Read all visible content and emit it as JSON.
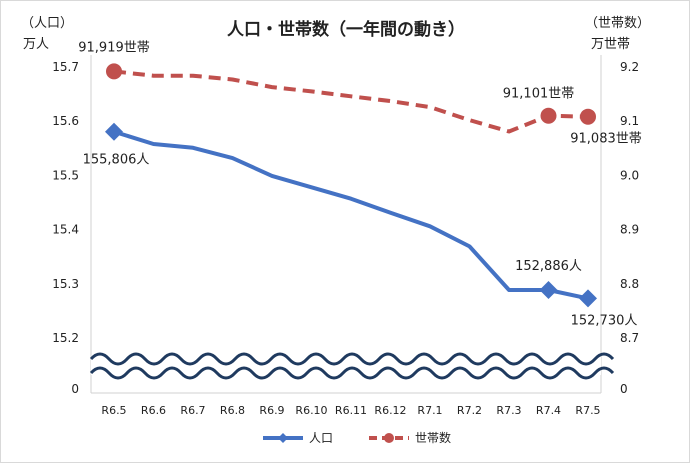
{
  "chart_data": {
    "type": "line",
    "title": "人口・世帯数（一年間の動き）",
    "left_axis": {
      "unit_line1": "（人口）",
      "unit_line2": "万人",
      "ticks": [
        "15.7",
        "15.6",
        "15.5",
        "15.4",
        "15.3",
        "15.2",
        "0"
      ],
      "ylim": [
        15.2,
        15.7
      ],
      "axis_break": true
    },
    "right_axis": {
      "unit_line1": "（世帯数）",
      "unit_line2": "万世帯",
      "ticks": [
        "9.2",
        "9.1",
        "9.0",
        "8.9",
        "8.8",
        "8.7",
        "0"
      ],
      "ylim": [
        8.7,
        9.2
      ],
      "axis_break": true
    },
    "categories": [
      "R6.5",
      "R6.6",
      "R6.7",
      "R6.8",
      "R6.9",
      "R6.10",
      "R6.11",
      "R6.12",
      "R7.1",
      "R7.2",
      "R7.3",
      "R7.4",
      "R7.5"
    ],
    "series": [
      {
        "name": "人口",
        "axis": "left",
        "color": "#4472c4",
        "style": "solid",
        "marker": "diamond",
        "values": [
          15.5806,
          15.558,
          15.551,
          15.532,
          15.499,
          15.478,
          15.457,
          15.431,
          15.406,
          15.369,
          15.2886,
          15.2886,
          15.273
        ],
        "marked_points": [
          0,
          11,
          12
        ]
      },
      {
        "name": "世帯数",
        "axis": "right",
        "color": "#c0504d",
        "style": "dashed",
        "marker": "circle",
        "values": [
          9.1919,
          9.184,
          9.184,
          9.177,
          9.163,
          9.155,
          9.146,
          9.137,
          9.126,
          9.102,
          9.081,
          9.1101,
          9.1083
        ],
        "marked_points": [
          0,
          11,
          12
        ]
      }
    ],
    "annotations": [
      {
        "series": 1,
        "index": 0,
        "text": "91,919世帯"
      },
      {
        "series": 0,
        "index": 0,
        "text": "155,806人"
      },
      {
        "series": 1,
        "index": 11,
        "text": "91,101世帯"
      },
      {
        "series": 1,
        "index": 12,
        "text": "91,083世帯"
      },
      {
        "series": 0,
        "index": 11,
        "text": "152,886人"
      },
      {
        "series": 0,
        "index": 12,
        "text": "152,730人"
      }
    ],
    "legend": {
      "placement": "bottom",
      "items": [
        "人口",
        "世帯数"
      ]
    },
    "grid": false
  }
}
